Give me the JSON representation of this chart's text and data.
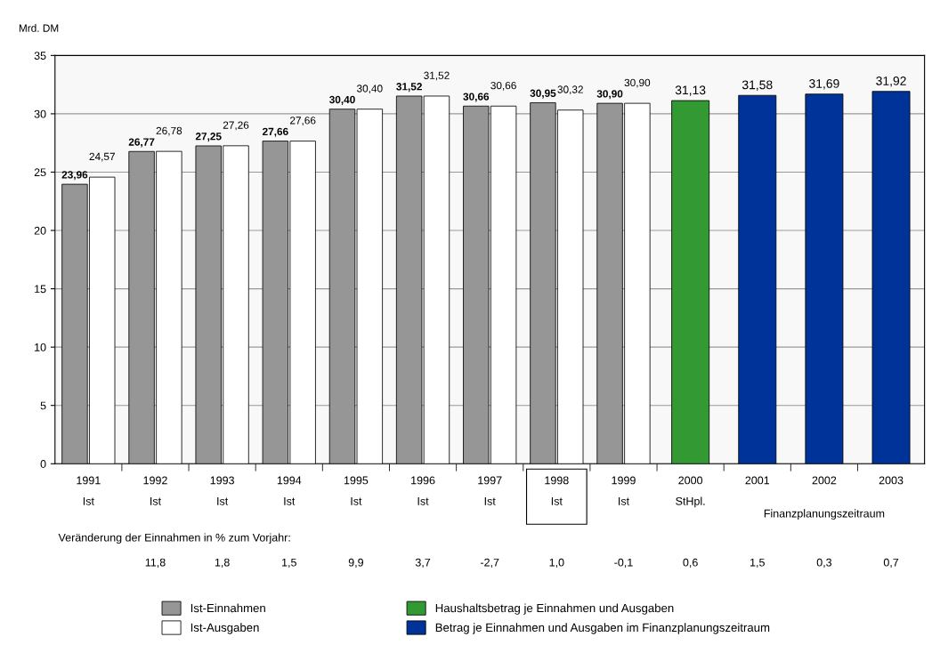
{
  "chart_data": {
    "type": "bar",
    "ylabel": "Mrd. DM",
    "categories": [
      "1991\nIst",
      "1992\nIst",
      "1993\nIst",
      "1994\nIst",
      "1995\nIst",
      "1996\nIst",
      "1997\nIst",
      "1998\nIst",
      "1999\nIst",
      "2000\nStHpl.",
      "2001",
      "2002",
      "2003"
    ],
    "series": [
      {
        "name": "Ist-Einnahmen",
        "color": "#969696",
        "values": [
          23.96,
          26.77,
          27.25,
          27.66,
          30.4,
          31.52,
          30.66,
          30.95,
          30.9,
          null,
          null,
          null,
          null
        ],
        "value_labels": [
          "23,96",
          "26,77",
          "27,25",
          "27,66",
          "30,40",
          "31,52",
          "30,66",
          "30,95",
          "30,90",
          null,
          null,
          null,
          null
        ]
      },
      {
        "name": "Ist-Ausgaben",
        "color": "#ffffff",
        "values": [
          24.57,
          26.78,
          27.26,
          27.66,
          30.4,
          31.52,
          30.66,
          30.32,
          30.9,
          null,
          null,
          null,
          null
        ],
        "value_labels": [
          "24,57",
          "26,78",
          "27,26",
          "27,66",
          "30,40",
          "31,52",
          "30,66",
          "30,32",
          "30,90",
          null,
          null,
          null,
          null
        ]
      },
      {
        "name": "Haushaltsbetrag je Einnahmen und Ausgaben",
        "color": "#339933",
        "values": [
          null,
          null,
          null,
          null,
          null,
          null,
          null,
          null,
          null,
          31.13,
          null,
          null,
          null
        ],
        "value_labels": [
          null,
          null,
          null,
          null,
          null,
          null,
          null,
          null,
          null,
          "31,13",
          null,
          null,
          null
        ]
      },
      {
        "name": "Betrag je Einnahmen und Ausgaben im Finanzplanungszeitraum",
        "color": "#003399",
        "values": [
          null,
          null,
          null,
          null,
          null,
          null,
          null,
          null,
          null,
          null,
          31.58,
          31.69,
          31.92
        ],
        "value_labels": [
          null,
          null,
          null,
          null,
          null,
          null,
          null,
          null,
          null,
          null,
          "31,58",
          "31,69",
          "31,92"
        ]
      }
    ],
    "ylim": [
      0,
      35
    ],
    "yticks": [
      0,
      5,
      10,
      15,
      20,
      25,
      30,
      35
    ],
    "grid": "y",
    "legend": "bottom",
    "annotations": [
      "Veränderung der Einnahmen in % zum Vorjahr:",
      "11,8",
      "1,8",
      "1,5",
      "9,9",
      "3,7",
      "-2,7",
      "1,0",
      "-0,1",
      "0,6",
      "1,5",
      "0,3",
      "0,7",
      "Finanzplanungszeitraum"
    ]
  }
}
